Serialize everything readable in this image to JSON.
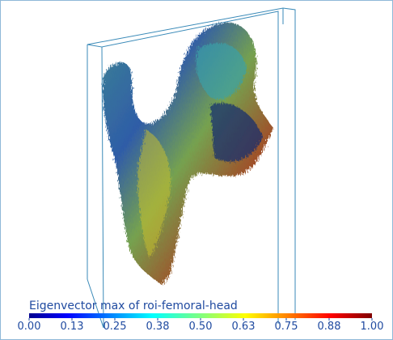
{
  "colorbar": {
    "title": "Eigenvector max of roi-femoral-head",
    "range": [
      0,
      1
    ],
    "ticks": [
      {
        "value": 0,
        "label": "0.00"
      },
      {
        "value": 0.125,
        "label": "0.13"
      },
      {
        "value": 0.25,
        "label": "0.25"
      },
      {
        "value": 0.375,
        "label": "0.38"
      },
      {
        "value": 0.5,
        "label": "0.50"
      },
      {
        "value": 0.625,
        "label": "0.63"
      },
      {
        "value": 0.75,
        "label": "0.75"
      },
      {
        "value": 0.875,
        "label": "0.88"
      },
      {
        "value": 1,
        "label": "1.00"
      }
    ]
  }
}
